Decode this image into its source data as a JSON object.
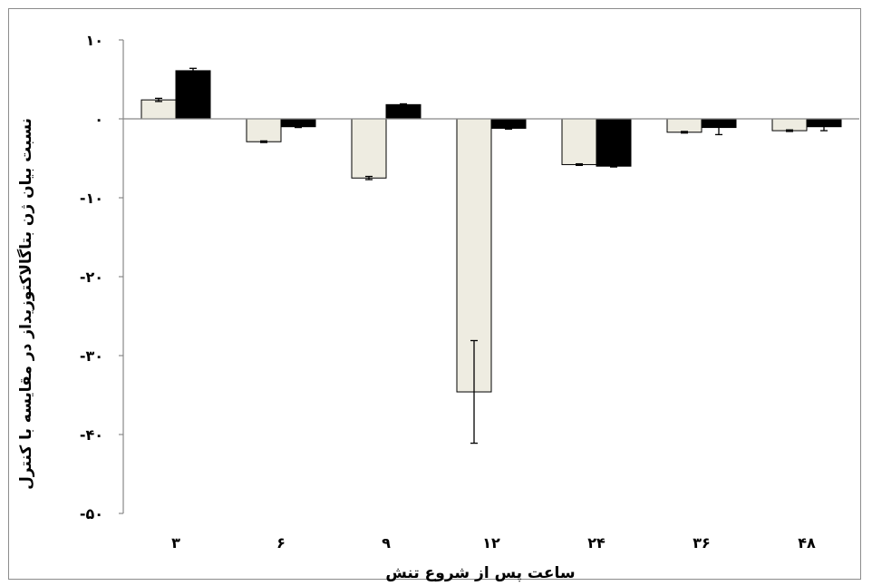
{
  "chart_data": {
    "type": "bar",
    "title": "",
    "xlabel": "ساعت پس از شروع تنش",
    "ylabel": "نسبت بیان ژن بتاگالاکتوزیداز در مقایسه با کنترل",
    "categories": [
      "۳",
      "۶",
      "۹",
      "۱۲",
      "۲۴",
      "۳۶",
      "۴۸"
    ],
    "ylim": [
      -50,
      10
    ],
    "yticks": [
      10,
      0,
      -10,
      -20,
      -30,
      -40,
      -50
    ],
    "ytick_labels": [
      "۱۰",
      "۰",
      "-۱۰",
      "-۲۰",
      "-۳۰",
      "-۴۰",
      "-۵۰"
    ],
    "grid": false,
    "legend": "none",
    "series": [
      {
        "color": "#eeece1",
        "values": [
          2.4,
          -2.9,
          -7.5,
          -34.6,
          -5.8,
          -1.7,
          -1.5
        ],
        "errors": [
          0.2,
          0.1,
          0.2,
          6.5,
          0.1,
          0.1,
          0.1
        ]
      },
      {
        "color": "#000000",
        "values": [
          6.1,
          -1.0,
          1.8,
          -1.2,
          -6.0,
          -1.1,
          -1.0
        ],
        "errors": [
          0.3,
          0.1,
          0.1,
          0.1,
          0.1,
          0.9,
          0.5
        ]
      }
    ]
  }
}
